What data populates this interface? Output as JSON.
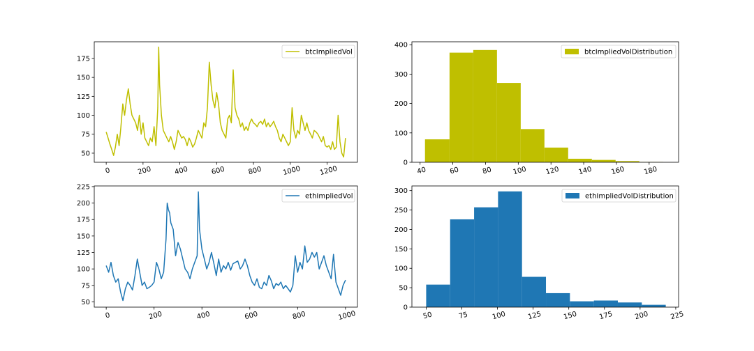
{
  "chart_data": [
    {
      "type": "line",
      "title": "",
      "xlabel": "",
      "ylabel": "",
      "xlim": [
        -65,
        1365
      ],
      "ylim": [
        38,
        197
      ],
      "xticks": [
        0,
        200,
        400,
        600,
        800,
        1000,
        1200
      ],
      "yticks": [
        50,
        75,
        100,
        125,
        150,
        175
      ],
      "grid": false,
      "legend_position": "top-right",
      "series": [
        {
          "name": "btcImpliedVol",
          "color": "#bfbf00",
          "x": [
            0,
            10,
            20,
            30,
            40,
            50,
            60,
            70,
            80,
            90,
            100,
            110,
            120,
            130,
            140,
            150,
            160,
            170,
            180,
            190,
            200,
            210,
            220,
            230,
            240,
            250,
            260,
            270,
            280,
            285,
            290,
            300,
            310,
            320,
            330,
            340,
            350,
            360,
            370,
            380,
            390,
            400,
            410,
            420,
            430,
            440,
            450,
            460,
            470,
            480,
            490,
            500,
            510,
            520,
            530,
            540,
            550,
            560,
            570,
            580,
            590,
            600,
            610,
            620,
            630,
            640,
            650,
            660,
            670,
            680,
            690,
            700,
            710,
            720,
            730,
            740,
            750,
            760,
            770,
            780,
            790,
            800,
            810,
            820,
            830,
            840,
            850,
            860,
            870,
            880,
            890,
            900,
            910,
            920,
            930,
            940,
            950,
            960,
            970,
            980,
            990,
            1000,
            1010,
            1020,
            1030,
            1040,
            1050,
            1060,
            1070,
            1080,
            1090,
            1100,
            1110,
            1120,
            1130,
            1140,
            1150,
            1160,
            1170,
            1180,
            1190,
            1200,
            1210,
            1220,
            1230,
            1240,
            1250,
            1260,
            1270,
            1280,
            1290,
            1300
          ],
          "values": [
            78,
            70,
            62,
            55,
            47,
            58,
            75,
            60,
            85,
            115,
            100,
            120,
            135,
            115,
            100,
            95,
            90,
            80,
            100,
            75,
            90,
            70,
            65,
            60,
            70,
            65,
            85,
            60,
            110,
            190,
            140,
            100,
            80,
            75,
            70,
            65,
            72,
            65,
            55,
            65,
            80,
            75,
            70,
            72,
            68,
            60,
            70,
            65,
            58,
            62,
            70,
            80,
            75,
            70,
            90,
            85,
            110,
            170,
            140,
            120,
            110,
            130,
            115,
            90,
            80,
            75,
            70,
            95,
            100,
            90,
            160,
            110,
            100,
            95,
            85,
            90,
            80,
            85,
            80,
            90,
            95,
            90,
            88,
            85,
            90,
            92,
            88,
            95,
            85,
            90,
            85,
            88,
            92,
            85,
            80,
            70,
            65,
            75,
            70,
            65,
            60,
            65,
            110,
            80,
            70,
            80,
            75,
            100,
            90,
            80,
            90,
            80,
            75,
            70,
            80,
            78,
            75,
            70,
            65,
            72,
            60,
            58,
            60,
            55,
            65,
            55,
            58,
            100,
            65,
            50,
            45,
            70
          ]
        }
      ]
    },
    {
      "type": "bar",
      "title": "",
      "xlabel": "",
      "ylabel": "",
      "xlim": [
        35,
        198
      ],
      "ylim": [
        0,
        410
      ],
      "xticks": [
        40,
        60,
        80,
        100,
        120,
        140,
        160,
        180
      ],
      "yticks": [
        0,
        100,
        200,
        300,
        400
      ],
      "grid": false,
      "legend_position": "top-right",
      "bin_edges": [
        43,
        58,
        72.5,
        87,
        101.5,
        116,
        130.5,
        145,
        159.5,
        174,
        188.5
      ],
      "series": [
        {
          "name": "btcImpliedVolDistribution",
          "color": "#bfbf00",
          "values": [
            78,
            373,
            382,
            270,
            113,
            50,
            12,
            8,
            4,
            1
          ]
        }
      ]
    },
    {
      "type": "line",
      "title": "",
      "xlabel": "",
      "ylabel": "",
      "xlim": [
        -50,
        1050
      ],
      "ylim": [
        42,
        226
      ],
      "xticks": [
        0,
        200,
        400,
        600,
        800,
        1000
      ],
      "yticks": [
        50,
        75,
        100,
        125,
        150,
        175,
        200,
        225
      ],
      "grid": false,
      "legend_position": "top-right",
      "series": [
        {
          "name": "ethImpliedVol",
          "color": "#1f77b4",
          "x": [
            0,
            10,
            20,
            30,
            40,
            50,
            60,
            70,
            80,
            90,
            100,
            110,
            120,
            130,
            140,
            150,
            160,
            170,
            180,
            190,
            200,
            210,
            220,
            230,
            240,
            250,
            255,
            260,
            265,
            270,
            280,
            290,
            300,
            310,
            320,
            330,
            340,
            350,
            360,
            370,
            380,
            385,
            390,
            400,
            410,
            420,
            430,
            440,
            450,
            460,
            470,
            480,
            490,
            500,
            510,
            520,
            530,
            540,
            550,
            560,
            570,
            580,
            590,
            600,
            610,
            620,
            630,
            640,
            650,
            660,
            670,
            680,
            690,
            700,
            710,
            720,
            730,
            740,
            750,
            760,
            770,
            780,
            790,
            800,
            810,
            820,
            830,
            840,
            850,
            860,
            870,
            880,
            890,
            900,
            910,
            920,
            930,
            940,
            950,
            960,
            970,
            980,
            990,
            1000
          ],
          "values": [
            105,
            95,
            110,
            90,
            80,
            85,
            65,
            52,
            70,
            80,
            75,
            68,
            90,
            115,
            95,
            75,
            80,
            70,
            72,
            75,
            80,
            110,
            100,
            85,
            95,
            145,
            200,
            190,
            185,
            170,
            160,
            120,
            140,
            130,
            115,
            100,
            95,
            85,
            100,
            110,
            120,
            217,
            160,
            130,
            115,
            100,
            110,
            125,
            108,
            90,
            115,
            95,
            105,
            100,
            110,
            98,
            108,
            110,
            112,
            100,
            105,
            115,
            105,
            90,
            80,
            75,
            85,
            72,
            70,
            80,
            75,
            90,
            82,
            70,
            78,
            75,
            80,
            70,
            75,
            70,
            65,
            75,
            120,
            95,
            110,
            100,
            135,
            110,
            115,
            125,
            118,
            125,
            100,
            110,
            120,
            105,
            95,
            85,
            122,
            80,
            70,
            60,
            75,
            83
          ]
        }
      ]
    },
    {
      "type": "bar",
      "title": "",
      "xlabel": "",
      "ylabel": "",
      "xlim": [
        40,
        227
      ],
      "ylim": [
        0,
        312
      ],
      "xticks": [
        50,
        75,
        100,
        125,
        150,
        175,
        200,
        225
      ],
      "yticks": [
        0,
        50,
        100,
        150,
        200,
        250,
        300
      ],
      "grid": false,
      "legend_position": "top-right",
      "bin_edges": [
        50,
        66.8,
        83.6,
        100.4,
        117.2,
        134,
        150.8,
        167.6,
        184.4,
        201.2,
        218
      ],
      "series": [
        {
          "name": "ethImpliedVolDistribution",
          "color": "#1f77b4",
          "values": [
            58,
            226,
            257,
            298,
            78,
            36,
            15,
            17,
            12,
            6
          ]
        }
      ]
    }
  ]
}
